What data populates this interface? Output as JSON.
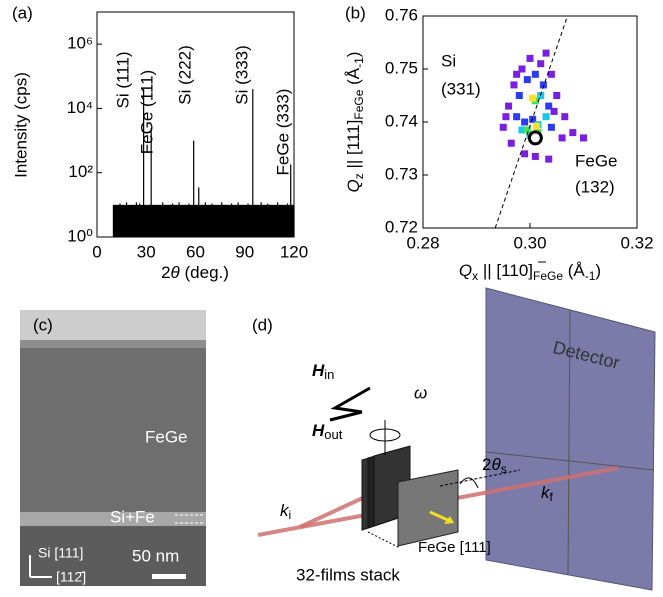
{
  "chart_data": [
    {
      "type": "stem",
      "title": "(a)",
      "xlabel_parts": [
        "2",
        "θ",
        " (deg.)"
      ],
      "ylabel": "Intensity (cps)",
      "color": "#000000",
      "log_y": true,
      "xlim": [
        0,
        120
      ],
      "ylim": [
        1,
        10000000
      ],
      "xticks": [
        0,
        30,
        60,
        90,
        120
      ],
      "yticks": [
        {
          "value": 1,
          "label": "10⁰"
        },
        {
          "value": 100,
          "label": "10²"
        },
        {
          "value": 10000,
          "label": "10⁴"
        },
        {
          "value": 1000000,
          "label": "10⁶"
        }
      ],
      "x": [
        10,
        12,
        14,
        16,
        18,
        20,
        22,
        24,
        26,
        28.4,
        30,
        33,
        35,
        38,
        40,
        42,
        44,
        46,
        48,
        50,
        52,
        54,
        56,
        58.9,
        60,
        62,
        64,
        66,
        68,
        70,
        72,
        74,
        76,
        78,
        80,
        82,
        84,
        86,
        88,
        90,
        92,
        94.9,
        96,
        98,
        100,
        102,
        104,
        106,
        108,
        110,
        112,
        114,
        116,
        118,
        120
      ],
      "values": [
        10,
        8,
        11,
        7,
        12,
        9,
        10,
        12,
        11,
        40000,
        9,
        2500,
        10,
        8,
        12,
        7,
        10,
        11,
        9,
        12,
        8,
        10,
        11,
        1000,
        9,
        35,
        10,
        12,
        8,
        11,
        10,
        9,
        12,
        10,
        8,
        11,
        9,
        12,
        10,
        8,
        11,
        40000,
        10,
        9,
        12,
        8,
        11,
        10,
        9,
        12,
        10,
        8,
        11,
        180,
        10
      ],
      "annotations": [
        "Si (111)",
        "FeGe (111)",
        "Si (222)",
        "Si (333)",
        "FeGe (333)"
      ]
    },
    {
      "type": "map",
      "title": "(b)",
      "xlabel_parts": [
        "Q",
        "x",
        " || [",
        "1",
        "10]",
        "FeGe",
        " (Å",
        "-1",
        ")"
      ],
      "ylabel_parts": [
        "Q",
        "z",
        " || [111]",
        "FeGe",
        " (Å",
        "-1",
        ")"
      ],
      "xlim": [
        0.28,
        0.32
      ],
      "ylim": [
        0.72,
        0.76
      ],
      "xticks": [
        0.28,
        {
          "value": 0.3,
          "label": "0.30"
        },
        0.32
      ],
      "yticks": [
        0.72,
        0.73,
        0.74,
        0.75,
        0.76
      ],
      "series": [
        {
          "color": "#7a1fe0",
          "x": [
            0.296,
            0.297,
            0.2985,
            0.3,
            0.302,
            0.304,
            0.305,
            0.3065,
            0.295,
            0.2965,
            0.299,
            0.3035,
            0.306,
            0.301,
            0.2975,
            0.3045,
            0.303,
            0.308,
            0.31,
            0.2955
          ],
          "values": [
            0.743,
            0.747,
            0.75,
            0.752,
            0.751,
            0.749,
            0.745,
            0.741,
            0.739,
            0.736,
            0.734,
            0.733,
            0.737,
            0.7335,
            0.749,
            0.742,
            0.753,
            0.738,
            0.737,
            0.741
          ]
        },
        {
          "color": "#2a3cf0",
          "x": [
            0.298,
            0.2995,
            0.301,
            0.3025,
            0.3035,
            0.299,
            0.3005,
            0.304,
            0.2975
          ],
          "values": [
            0.745,
            0.748,
            0.749,
            0.747,
            0.743,
            0.74,
            0.7405,
            0.739,
            0.741
          ]
        },
        {
          "color": "#18c8e8",
          "x": [
            0.2985,
            0.3,
            0.3015,
            0.303,
            0.302
          ],
          "values": [
            0.7385,
            0.7375,
            0.7395,
            0.741,
            0.745
          ]
        },
        {
          "color": "#44e060",
          "x": [
            0.2995,
            0.301,
            0.3015
          ],
          "values": [
            0.7385,
            0.744,
            0.738
          ]
        },
        {
          "color": "#ffe020",
          "x": [
            0.3005,
            0.3012
          ],
          "values": [
            0.7445,
            0.7392
          ]
        }
      ],
      "guide_x": [
        0.2935,
        0.307
      ],
      "guide_values": [
        0.72,
        0.76
      ],
      "marker_x": [
        0.301
      ],
      "marker_values": [
        0.737
      ],
      "annotations": [
        [
          "Si",
          "(331)"
        ],
        [
          "FeGe",
          "(132)"
        ]
      ]
    }
  ],
  "panel_c": {
    "title": "(c)",
    "layer": "FeGe",
    "interface": "Si+Fe",
    "axis_up": "Si [111]",
    "axis_right": "[112̄]",
    "scale": "50 nm"
  },
  "panel_d": {
    "title": "(d)",
    "detector": "Detector",
    "h_in": [
      "H",
      "in"
    ],
    "h_out": [
      "H",
      "out"
    ],
    "omega": "ω",
    "angle": [
      "2",
      "θ",
      "s"
    ],
    "k_in": [
      "k",
      "i"
    ],
    "k_out": [
      "k",
      "f"
    ],
    "direction": "FeGe [111]",
    "stack": "32-films stack"
  }
}
